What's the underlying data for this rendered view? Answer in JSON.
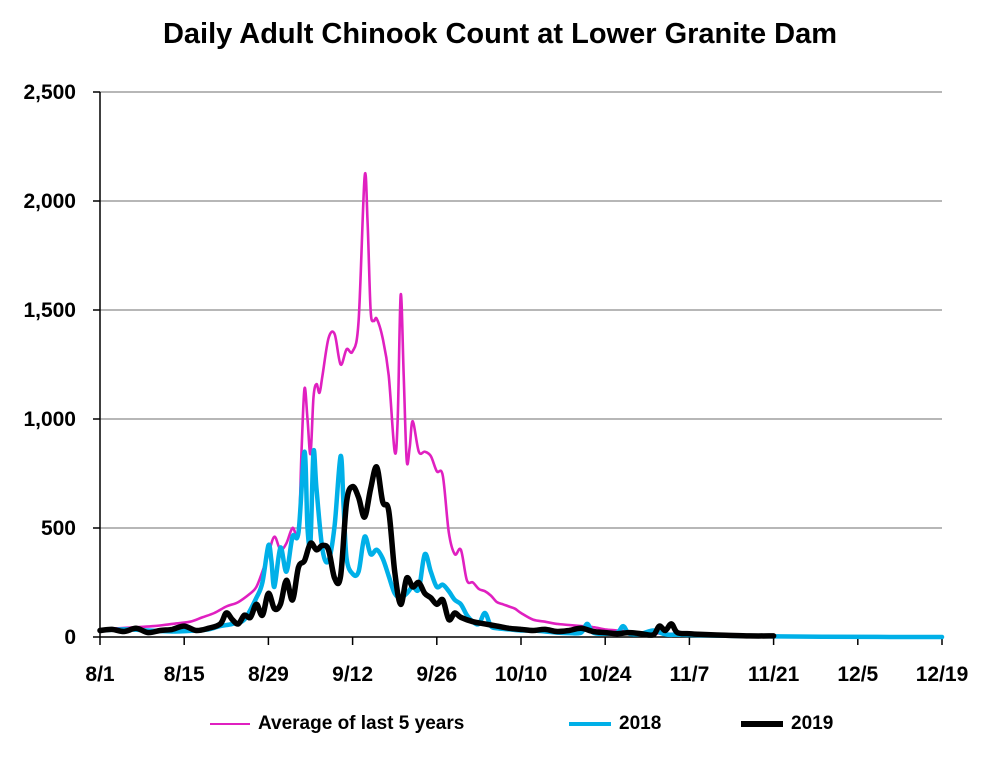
{
  "chart_data": {
    "type": "line",
    "title": "Daily Adult Chinook Count at Lower Granite Dam",
    "xlabel": "",
    "ylabel": "",
    "x_tick_labels": [
      "8/1",
      "8/15",
      "8/29",
      "9/12",
      "9/26",
      "10/10",
      "10/24",
      "11/7",
      "11/21",
      "12/5",
      "12/19"
    ],
    "x_range_days": [
      0,
      140
    ],
    "y_tick_labels": [
      "0",
      "500",
      "1,000",
      "1,500",
      "2,000",
      "2,500"
    ],
    "ylim": [
      0,
      2500
    ],
    "grid": "horizontal",
    "legend_position": "bottom",
    "series": [
      {
        "name": "Average of last 5 years",
        "color": "#E020C0",
        "points": [
          [
            0,
            35
          ],
          [
            3,
            40
          ],
          [
            6,
            45
          ],
          [
            9,
            50
          ],
          [
            12,
            60
          ],
          [
            15,
            70
          ],
          [
            17,
            90
          ],
          [
            19,
            110
          ],
          [
            21,
            140
          ],
          [
            23,
            160
          ],
          [
            25,
            200
          ],
          [
            26,
            230
          ],
          [
            27,
            300
          ],
          [
            28,
            380
          ],
          [
            29,
            460
          ],
          [
            30,
            400
          ],
          [
            31,
            430
          ],
          [
            32,
            500
          ],
          [
            33,
            480
          ],
          [
            33.5,
            850
          ],
          [
            34,
            1140
          ],
          [
            34.5,
            1000
          ],
          [
            35,
            840
          ],
          [
            35.5,
            1100
          ],
          [
            36,
            1160
          ],
          [
            36.5,
            1120
          ],
          [
            37,
            1200
          ],
          [
            38,
            1370
          ],
          [
            39,
            1390
          ],
          [
            40,
            1250
          ],
          [
            41,
            1320
          ],
          [
            42,
            1310
          ],
          [
            43,
            1450
          ],
          [
            44,
            2110
          ],
          [
            44.5,
            1900
          ],
          [
            45,
            1500
          ],
          [
            45.5,
            1450
          ],
          [
            46,
            1460
          ],
          [
            47,
            1370
          ],
          [
            48,
            1200
          ],
          [
            49,
            850
          ],
          [
            49.5,
            1000
          ],
          [
            50,
            1570
          ],
          [
            50.5,
            1200
          ],
          [
            51,
            810
          ],
          [
            51.5,
            870
          ],
          [
            52,
            990
          ],
          [
            53,
            850
          ],
          [
            54,
            850
          ],
          [
            55,
            830
          ],
          [
            56,
            760
          ],
          [
            57,
            740
          ],
          [
            58,
            480
          ],
          [
            59,
            380
          ],
          [
            60,
            400
          ],
          [
            61,
            260
          ],
          [
            62,
            250
          ],
          [
            63,
            220
          ],
          [
            64,
            210
          ],
          [
            65,
            190
          ],
          [
            66,
            160
          ],
          [
            67,
            150
          ],
          [
            68,
            140
          ],
          [
            69,
            130
          ],
          [
            70,
            110
          ],
          [
            72,
            80
          ],
          [
            74,
            70
          ],
          [
            76,
            60
          ],
          [
            78,
            55
          ],
          [
            80,
            50
          ],
          [
            82,
            45
          ],
          [
            84,
            35
          ],
          [
            86,
            30
          ],
          [
            88,
            25
          ],
          [
            90,
            20
          ],
          [
            94,
            15
          ],
          [
            98,
            15
          ],
          [
            105,
            10
          ],
          [
            112,
            5
          ],
          [
            120,
            2
          ],
          [
            140,
            0
          ]
        ]
      },
      {
        "name": "2018",
        "color": "#00B0E8",
        "points": [
          [
            0,
            30
          ],
          [
            4,
            35
          ],
          [
            8,
            30
          ],
          [
            12,
            25
          ],
          [
            16,
            30
          ],
          [
            18,
            35
          ],
          [
            20,
            50
          ],
          [
            22,
            60
          ],
          [
            24,
            80
          ],
          [
            26,
            180
          ],
          [
            27,
            250
          ],
          [
            28,
            420
          ],
          [
            28.5,
            350
          ],
          [
            29,
            230
          ],
          [
            30,
            410
          ],
          [
            31,
            300
          ],
          [
            32,
            460
          ],
          [
            33,
            480
          ],
          [
            34,
            850
          ],
          [
            34.5,
            500
          ],
          [
            35,
            440
          ],
          [
            35.5,
            850
          ],
          [
            36,
            680
          ],
          [
            37,
            400
          ],
          [
            38,
            350
          ],
          [
            39,
            510
          ],
          [
            40,
            830
          ],
          [
            40.5,
            600
          ],
          [
            41,
            360
          ],
          [
            42,
            290
          ],
          [
            43,
            300
          ],
          [
            44,
            460
          ],
          [
            45,
            380
          ],
          [
            46,
            400
          ],
          [
            47,
            360
          ],
          [
            48,
            280
          ],
          [
            49,
            200
          ],
          [
            50,
            180
          ],
          [
            51,
            200
          ],
          [
            52,
            230
          ],
          [
            53,
            220
          ],
          [
            54,
            380
          ],
          [
            55,
            300
          ],
          [
            56,
            230
          ],
          [
            57,
            240
          ],
          [
            58,
            210
          ],
          [
            59,
            170
          ],
          [
            60,
            150
          ],
          [
            61,
            100
          ],
          [
            62,
            70
          ],
          [
            63,
            60
          ],
          [
            64,
            110
          ],
          [
            65,
            50
          ],
          [
            66,
            40
          ],
          [
            68,
            35
          ],
          [
            70,
            30
          ],
          [
            72,
            30
          ],
          [
            74,
            25
          ],
          [
            76,
            20
          ],
          [
            78,
            18
          ],
          [
            80,
            20
          ],
          [
            81,
            60
          ],
          [
            82,
            20
          ],
          [
            84,
            15
          ],
          [
            86,
            20
          ],
          [
            87,
            50
          ],
          [
            88,
            15
          ],
          [
            90,
            15
          ],
          [
            92,
            30
          ],
          [
            94,
            12
          ],
          [
            96,
            10
          ],
          [
            100,
            8
          ],
          [
            105,
            5
          ],
          [
            110,
            3
          ],
          [
            120,
            1
          ],
          [
            140,
            0
          ]
        ]
      },
      {
        "name": "2019",
        "color": "#000000",
        "points": [
          [
            0,
            30
          ],
          [
            2,
            35
          ],
          [
            4,
            25
          ],
          [
            6,
            40
          ],
          [
            8,
            20
          ],
          [
            10,
            30
          ],
          [
            12,
            35
          ],
          [
            14,
            50
          ],
          [
            16,
            30
          ],
          [
            18,
            40
          ],
          [
            20,
            60
          ],
          [
            21,
            110
          ],
          [
            22,
            80
          ],
          [
            23,
            60
          ],
          [
            24,
            100
          ],
          [
            25,
            90
          ],
          [
            26,
            150
          ],
          [
            27,
            100
          ],
          [
            28,
            200
          ],
          [
            29,
            130
          ],
          [
            30,
            150
          ],
          [
            31,
            260
          ],
          [
            32,
            170
          ],
          [
            33,
            320
          ],
          [
            34,
            350
          ],
          [
            35,
            430
          ],
          [
            36,
            400
          ],
          [
            37,
            420
          ],
          [
            38,
            400
          ],
          [
            39,
            270
          ],
          [
            40,
            280
          ],
          [
            41,
            620
          ],
          [
            42,
            690
          ],
          [
            43,
            640
          ],
          [
            44,
            550
          ],
          [
            45,
            680
          ],
          [
            46,
            780
          ],
          [
            47,
            620
          ],
          [
            48,
            580
          ],
          [
            49,
            300
          ],
          [
            50,
            150
          ],
          [
            51,
            270
          ],
          [
            52,
            230
          ],
          [
            53,
            250
          ],
          [
            54,
            200
          ],
          [
            55,
            180
          ],
          [
            56,
            150
          ],
          [
            57,
            170
          ],
          [
            58,
            80
          ],
          [
            59,
            110
          ],
          [
            60,
            90
          ],
          [
            62,
            70
          ],
          [
            64,
            60
          ],
          [
            66,
            50
          ],
          [
            68,
            40
          ],
          [
            70,
            35
          ],
          [
            72,
            30
          ],
          [
            74,
            35
          ],
          [
            76,
            25
          ],
          [
            78,
            30
          ],
          [
            80,
            40
          ],
          [
            82,
            25
          ],
          [
            84,
            20
          ],
          [
            86,
            15
          ],
          [
            88,
            20
          ],
          [
            90,
            15
          ],
          [
            92,
            10
          ],
          [
            93,
            50
          ],
          [
            94,
            30
          ],
          [
            95,
            60
          ],
          [
            96,
            20
          ],
          [
            98,
            15
          ],
          [
            100,
            12
          ],
          [
            104,
            8
          ],
          [
            108,
            5
          ],
          [
            112,
            5
          ]
        ]
      }
    ]
  }
}
